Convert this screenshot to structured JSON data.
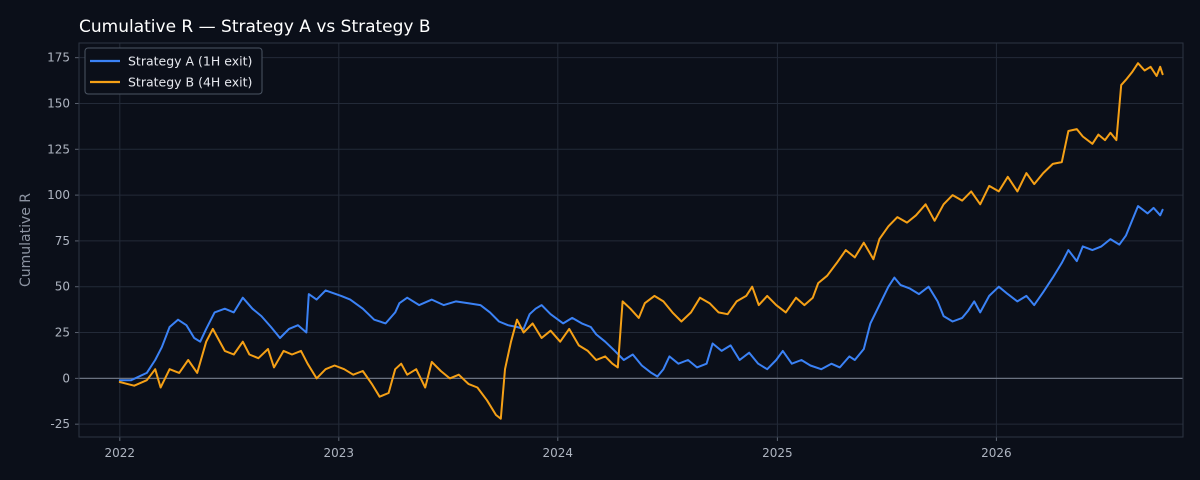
{
  "chart_data": {
    "type": "line",
    "title": "Cumulative R — Strategy A vs Strategy B",
    "xlabel": "",
    "ylabel": "Cumulative R",
    "xlim": [
      "2021-10-25",
      "2026-11-08"
    ],
    "ylim": [
      -32,
      183
    ],
    "x_ticks": [
      "2022",
      "2023",
      "2024",
      "2025",
      "2026"
    ],
    "y_ticks": [
      -25,
      0,
      25,
      50,
      75,
      100,
      125,
      150,
      175
    ],
    "grid": true,
    "legend": "top-left",
    "zero_line": true,
    "series": [
      {
        "name": "Strategy A (1H exit)",
        "color": "#3b82f6",
        "points": [
          [
            "2022-01-01",
            -1
          ],
          [
            "2022-01-20",
            -1
          ],
          [
            "2022-02-15",
            3
          ],
          [
            "2022-03-01",
            10
          ],
          [
            "2022-03-12",
            17
          ],
          [
            "2022-03-25",
            28
          ],
          [
            "2022-04-08",
            32
          ],
          [
            "2022-04-22",
            29
          ],
          [
            "2022-05-05",
            22
          ],
          [
            "2022-05-15",
            20
          ],
          [
            "2022-05-25",
            27
          ],
          [
            "2022-06-08",
            36
          ],
          [
            "2022-06-25",
            38
          ],
          [
            "2022-07-10",
            36
          ],
          [
            "2022-07-25",
            44
          ],
          [
            "2022-08-10",
            38
          ],
          [
            "2022-08-25",
            34
          ],
          [
            "2022-09-10",
            28
          ],
          [
            "2022-09-25",
            22
          ],
          [
            "2022-10-10",
            27
          ],
          [
            "2022-10-25",
            29
          ],
          [
            "2022-11-08",
            25
          ],
          [
            "2022-11-12",
            46
          ],
          [
            "2022-11-25",
            43
          ],
          [
            "2022-12-10",
            48
          ],
          [
            "2023-01-05",
            45
          ],
          [
            "2023-01-20",
            43
          ],
          [
            "2023-02-10",
            38
          ],
          [
            "2023-03-01",
            32
          ],
          [
            "2023-03-20",
            30
          ],
          [
            "2023-04-05",
            36
          ],
          [
            "2023-04-12",
            41
          ],
          [
            "2023-04-25",
            44
          ],
          [
            "2023-05-15",
            40
          ],
          [
            "2023-06-05",
            43
          ],
          [
            "2023-06-25",
            40
          ],
          [
            "2023-07-15",
            42
          ],
          [
            "2023-08-05",
            41
          ],
          [
            "2023-08-25",
            40
          ],
          [
            "2023-09-10",
            36
          ],
          [
            "2023-09-25",
            31
          ],
          [
            "2023-10-10",
            29
          ],
          [
            "2023-10-25",
            28
          ],
          [
            "2023-11-05",
            27
          ],
          [
            "2023-11-15",
            35
          ],
          [
            "2023-11-25",
            38
          ],
          [
            "2023-12-05",
            40
          ],
          [
            "2023-12-20",
            35
          ],
          [
            "2024-01-10",
            30
          ],
          [
            "2024-01-25",
            33
          ],
          [
            "2024-02-10",
            30
          ],
          [
            "2024-02-25",
            28
          ],
          [
            "2024-03-05",
            24
          ],
          [
            "2024-03-20",
            20
          ],
          [
            "2024-04-05",
            15
          ],
          [
            "2024-04-20",
            10
          ],
          [
            "2024-05-05",
            13
          ],
          [
            "2024-05-20",
            7
          ],
          [
            "2024-06-05",
            3
          ],
          [
            "2024-06-15",
            1
          ],
          [
            "2024-06-25",
            5
          ],
          [
            "2024-07-05",
            12
          ],
          [
            "2024-07-20",
            8
          ],
          [
            "2024-08-05",
            10
          ],
          [
            "2024-08-20",
            6
          ],
          [
            "2024-09-05",
            8
          ],
          [
            "2024-09-15",
            19
          ],
          [
            "2024-09-30",
            15
          ],
          [
            "2024-10-15",
            18
          ],
          [
            "2024-10-30",
            10
          ],
          [
            "2024-11-15",
            14
          ],
          [
            "2024-11-30",
            8
          ],
          [
            "2024-12-15",
            5
          ],
          [
            "2024-12-30",
            10
          ],
          [
            "2025-01-10",
            15
          ],
          [
            "2025-01-25",
            8
          ],
          [
            "2025-02-10",
            10
          ],
          [
            "2025-02-25",
            7
          ],
          [
            "2025-03-15",
            5
          ],
          [
            "2025-04-01",
            8
          ],
          [
            "2025-04-15",
            6
          ],
          [
            "2025-05-01",
            12
          ],
          [
            "2025-05-10",
            10
          ],
          [
            "2025-05-25",
            16
          ],
          [
            "2025-06-05",
            30
          ],
          [
            "2025-06-20",
            40
          ],
          [
            "2025-07-05",
            50
          ],
          [
            "2025-07-15",
            55
          ],
          [
            "2025-07-25",
            51
          ],
          [
            "2025-08-10",
            49
          ],
          [
            "2025-08-25",
            46
          ],
          [
            "2025-09-10",
            50
          ],
          [
            "2025-09-25",
            42
          ],
          [
            "2025-10-05",
            34
          ],
          [
            "2025-10-20",
            31
          ],
          [
            "2025-11-05",
            33
          ],
          [
            "2025-11-15",
            37
          ],
          [
            "2025-11-25",
            42
          ],
          [
            "2025-12-05",
            36
          ],
          [
            "2025-12-20",
            45
          ],
          [
            "2026-01-05",
            50
          ],
          [
            "2026-01-20",
            46
          ],
          [
            "2026-02-05",
            42
          ],
          [
            "2026-02-20",
            45
          ],
          [
            "2026-03-05",
            40
          ],
          [
            "2026-03-20",
            47
          ],
          [
            "2026-04-05",
            55
          ],
          [
            "2026-04-20",
            63
          ],
          [
            "2026-05-01",
            70
          ],
          [
            "2026-05-15",
            64
          ],
          [
            "2026-05-25",
            72
          ],
          [
            "2026-06-10",
            70
          ],
          [
            "2026-06-25",
            72
          ],
          [
            "2026-07-10",
            76
          ],
          [
            "2026-07-25",
            73
          ],
          [
            "2026-08-05",
            78
          ],
          [
            "2026-08-15",
            86
          ],
          [
            "2026-08-25",
            94
          ],
          [
            "2026-09-10",
            90
          ],
          [
            "2026-09-20",
            93
          ],
          [
            "2026-10-01",
            89
          ],
          [
            "2026-10-05",
            92
          ]
        ]
      },
      {
        "name": "Strategy B (4H exit)",
        "color": "#f5a016",
        "points": [
          [
            "2022-01-01",
            -2
          ],
          [
            "2022-01-25",
            -4
          ],
          [
            "2022-02-15",
            -1
          ],
          [
            "2022-03-01",
            5
          ],
          [
            "2022-03-10",
            -5
          ],
          [
            "2022-03-25",
            5
          ],
          [
            "2022-04-10",
            3
          ],
          [
            "2022-04-25",
            10
          ],
          [
            "2022-05-10",
            3
          ],
          [
            "2022-05-25",
            20
          ],
          [
            "2022-06-05",
            27
          ],
          [
            "2022-06-15",
            21
          ],
          [
            "2022-06-25",
            15
          ],
          [
            "2022-07-10",
            13
          ],
          [
            "2022-07-25",
            20
          ],
          [
            "2022-08-05",
            13
          ],
          [
            "2022-08-20",
            11
          ],
          [
            "2022-09-05",
            16
          ],
          [
            "2022-09-15",
            6
          ],
          [
            "2022-10-01",
            15
          ],
          [
            "2022-10-15",
            13
          ],
          [
            "2022-10-30",
            15
          ],
          [
            "2022-11-10",
            8
          ],
          [
            "2022-11-25",
            0
          ],
          [
            "2022-12-10",
            5
          ],
          [
            "2022-12-25",
            7
          ],
          [
            "2023-01-10",
            5
          ],
          [
            "2023-01-25",
            2
          ],
          [
            "2023-02-10",
            4
          ],
          [
            "2023-02-25",
            -3
          ],
          [
            "2023-03-10",
            -10
          ],
          [
            "2023-03-25",
            -8
          ],
          [
            "2023-04-05",
            5
          ],
          [
            "2023-04-15",
            8
          ],
          [
            "2023-04-25",
            2
          ],
          [
            "2023-05-10",
            5
          ],
          [
            "2023-05-25",
            -5
          ],
          [
            "2023-06-05",
            9
          ],
          [
            "2023-06-20",
            4
          ],
          [
            "2023-07-05",
            0
          ],
          [
            "2023-07-20",
            2
          ],
          [
            "2023-08-05",
            -3
          ],
          [
            "2023-08-20",
            -5
          ],
          [
            "2023-09-05",
            -12
          ],
          [
            "2023-09-20",
            -20
          ],
          [
            "2023-09-28",
            -22
          ],
          [
            "2023-10-05",
            5
          ],
          [
            "2023-10-15",
            20
          ],
          [
            "2023-10-25",
            32
          ],
          [
            "2023-11-05",
            25
          ],
          [
            "2023-11-20",
            30
          ],
          [
            "2023-12-05",
            22
          ],
          [
            "2023-12-20",
            26
          ],
          [
            "2024-01-05",
            20
          ],
          [
            "2024-01-20",
            27
          ],
          [
            "2024-02-05",
            18
          ],
          [
            "2024-02-20",
            15
          ],
          [
            "2024-03-05",
            10
          ],
          [
            "2024-03-20",
            12
          ],
          [
            "2024-04-01",
            8
          ],
          [
            "2024-04-10",
            6
          ],
          [
            "2024-04-18",
            42
          ],
          [
            "2024-05-01",
            38
          ],
          [
            "2024-05-15",
            33
          ],
          [
            "2024-05-25",
            41
          ],
          [
            "2024-06-10",
            45
          ],
          [
            "2024-06-25",
            42
          ],
          [
            "2024-07-10",
            36
          ],
          [
            "2024-07-25",
            31
          ],
          [
            "2024-08-10",
            36
          ],
          [
            "2024-08-25",
            44
          ],
          [
            "2024-09-10",
            41
          ],
          [
            "2024-09-25",
            36
          ],
          [
            "2024-10-10",
            35
          ],
          [
            "2024-10-25",
            42
          ],
          [
            "2024-11-10",
            45
          ],
          [
            "2024-11-20",
            50
          ],
          [
            "2024-12-01",
            40
          ],
          [
            "2024-12-15",
            45
          ],
          [
            "2024-12-30",
            40
          ],
          [
            "2025-01-15",
            36
          ],
          [
            "2025-02-01",
            44
          ],
          [
            "2025-02-15",
            40
          ],
          [
            "2025-03-01",
            44
          ],
          [
            "2025-03-10",
            52
          ],
          [
            "2025-03-25",
            56
          ],
          [
            "2025-04-10",
            63
          ],
          [
            "2025-04-25",
            70
          ],
          [
            "2025-05-10",
            66
          ],
          [
            "2025-05-25",
            74
          ],
          [
            "2025-06-10",
            65
          ],
          [
            "2025-06-20",
            76
          ],
          [
            "2025-07-05",
            83
          ],
          [
            "2025-07-20",
            88
          ],
          [
            "2025-08-05",
            85
          ],
          [
            "2025-08-20",
            89
          ],
          [
            "2025-09-05",
            95
          ],
          [
            "2025-09-20",
            86
          ],
          [
            "2025-10-05",
            95
          ],
          [
            "2025-10-20",
            100
          ],
          [
            "2025-11-05",
            97
          ],
          [
            "2025-11-20",
            102
          ],
          [
            "2025-12-05",
            95
          ],
          [
            "2025-12-20",
            105
          ],
          [
            "2026-01-05",
            102
          ],
          [
            "2026-01-20",
            110
          ],
          [
            "2026-02-05",
            102
          ],
          [
            "2026-02-20",
            112
          ],
          [
            "2026-03-05",
            106
          ],
          [
            "2026-03-20",
            112
          ],
          [
            "2026-04-05",
            117
          ],
          [
            "2026-04-20",
            118
          ],
          [
            "2026-05-01",
            135
          ],
          [
            "2026-05-15",
            136
          ],
          [
            "2026-05-25",
            132
          ],
          [
            "2026-06-10",
            128
          ],
          [
            "2026-06-20",
            133
          ],
          [
            "2026-07-01",
            130
          ],
          [
            "2026-07-10",
            134
          ],
          [
            "2026-07-20",
            130
          ],
          [
            "2026-07-28",
            160
          ],
          [
            "2026-08-05",
            163
          ],
          [
            "2026-08-15",
            167
          ],
          [
            "2026-08-25",
            172
          ],
          [
            "2026-09-05",
            168
          ],
          [
            "2026-09-15",
            170
          ],
          [
            "2026-09-25",
            165
          ],
          [
            "2026-10-01",
            170
          ],
          [
            "2026-10-05",
            166
          ]
        ]
      }
    ]
  }
}
